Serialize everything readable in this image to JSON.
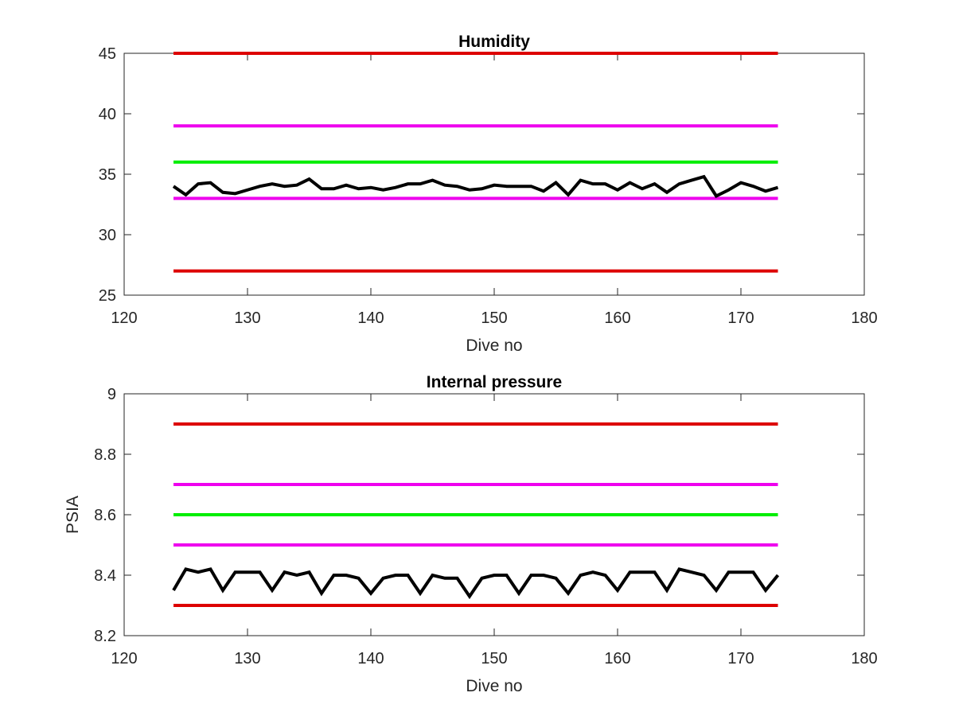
{
  "colors": {
    "red": "#dd0000",
    "magenta": "#ee00ee",
    "green": "#00ee00",
    "data": "#000000",
    "axis": "#262626"
  },
  "chart_data": [
    {
      "type": "line",
      "title": "Humidity",
      "xlabel": "Dive no",
      "ylabel": "",
      "xlim": [
        120,
        180
      ],
      "ylim": [
        25,
        45
      ],
      "xticks": [
        120,
        130,
        140,
        150,
        160,
        170,
        180
      ],
      "yticks": [
        25,
        30,
        35,
        40,
        45
      ],
      "grid": false,
      "legend": "none",
      "reference_lines": [
        {
          "y": 45,
          "x_range": [
            124,
            173
          ],
          "color": "red"
        },
        {
          "y": 39,
          "x_range": [
            124,
            173
          ],
          "color": "magenta"
        },
        {
          "y": 36,
          "x_range": [
            124,
            173
          ],
          "color": "green"
        },
        {
          "y": 33,
          "x_range": [
            124,
            173
          ],
          "color": "magenta"
        },
        {
          "y": 27,
          "x_range": [
            124,
            173
          ],
          "color": "red"
        }
      ],
      "series": [
        {
          "color": "data",
          "x": [
            124,
            125,
            126,
            127,
            128,
            129,
            130,
            131,
            132,
            133,
            134,
            135,
            136,
            137,
            138,
            139,
            140,
            141,
            142,
            143,
            144,
            145,
            146,
            147,
            148,
            149,
            150,
            151,
            152,
            153,
            154,
            155,
            156,
            157,
            158,
            159,
            160,
            161,
            162,
            163,
            164,
            165,
            166,
            167,
            168,
            169,
            170,
            171,
            172,
            173
          ],
          "values": [
            34.0,
            33.3,
            34.2,
            34.3,
            33.5,
            33.4,
            33.7,
            34.0,
            34.2,
            34.0,
            34.1,
            34.6,
            33.8,
            33.8,
            34.1,
            33.8,
            33.9,
            33.7,
            33.9,
            34.2,
            34.2,
            34.5,
            34.1,
            34.0,
            33.7,
            33.8,
            34.1,
            34.0,
            34.0,
            34.0,
            33.6,
            34.3,
            33.3,
            34.5,
            34.2,
            34.2,
            33.7,
            34.3,
            33.8,
            34.2,
            33.5,
            34.2,
            34.5,
            34.8,
            33.2,
            33.7,
            34.3,
            34.0,
            33.6,
            33.9
          ]
        }
      ]
    },
    {
      "type": "line",
      "title": "Internal pressure",
      "xlabel": "Dive no",
      "ylabel": "PSIA",
      "xlim": [
        120,
        180
      ],
      "ylim": [
        8.2,
        9.0
      ],
      "xticks": [
        120,
        130,
        140,
        150,
        160,
        170,
        180
      ],
      "yticks": [
        8.2,
        8.4,
        8.6,
        8.8,
        9
      ],
      "ytick_labels": [
        "8.2",
        "8.4",
        "8.6",
        "8.8",
        "9"
      ],
      "grid": false,
      "legend": "none",
      "reference_lines": [
        {
          "y": 8.9,
          "x_range": [
            124,
            173
          ],
          "color": "red"
        },
        {
          "y": 8.7,
          "x_range": [
            124,
            173
          ],
          "color": "magenta"
        },
        {
          "y": 8.6,
          "x_range": [
            124,
            173
          ],
          "color": "green"
        },
        {
          "y": 8.5,
          "x_range": [
            124,
            173
          ],
          "color": "magenta"
        },
        {
          "y": 8.3,
          "x_range": [
            124,
            173
          ],
          "color": "red"
        }
      ],
      "series": [
        {
          "color": "data",
          "x": [
            124,
            125,
            126,
            127,
            128,
            129,
            130,
            131,
            132,
            133,
            134,
            135,
            136,
            137,
            138,
            139,
            140,
            141,
            142,
            143,
            144,
            145,
            146,
            147,
            148,
            149,
            150,
            151,
            152,
            153,
            154,
            155,
            156,
            157,
            158,
            159,
            160,
            161,
            162,
            163,
            164,
            165,
            166,
            167,
            168,
            169,
            170,
            171,
            172,
            173
          ],
          "values": [
            8.35,
            8.42,
            8.41,
            8.42,
            8.35,
            8.41,
            8.41,
            8.41,
            8.35,
            8.41,
            8.4,
            8.41,
            8.34,
            8.4,
            8.4,
            8.39,
            8.34,
            8.39,
            8.4,
            8.4,
            8.34,
            8.4,
            8.39,
            8.39,
            8.33,
            8.39,
            8.4,
            8.4,
            8.34,
            8.4,
            8.4,
            8.39,
            8.34,
            8.4,
            8.41,
            8.4,
            8.35,
            8.41,
            8.41,
            8.41,
            8.35,
            8.42,
            8.41,
            8.4,
            8.35,
            8.41,
            8.41,
            8.41,
            8.35,
            8.4
          ]
        }
      ]
    }
  ]
}
